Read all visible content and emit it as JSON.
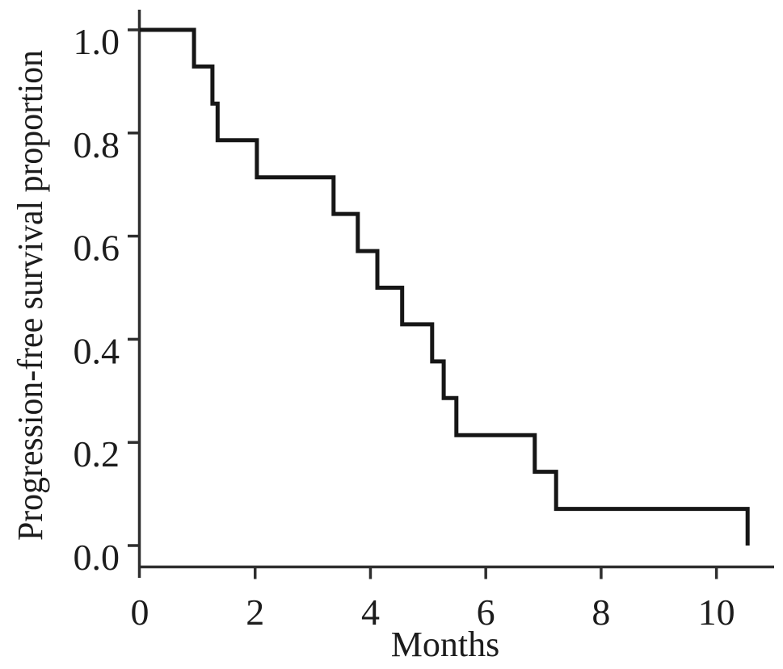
{
  "page": {
    "background_color": "#ffffff",
    "curve_color": "#161616",
    "axis_color": "#2e2e2e",
    "label_color": "#1c1c1c"
  },
  "chart_data": {
    "type": "line",
    "variant": "kaplan-meier-step-curve",
    "title": "",
    "xlabel": "Months",
    "ylabel": "Progression-free survival proportion",
    "xlim": [
      0,
      11
    ],
    "ylim": [
      0,
      1
    ],
    "x_tick_values": [
      0,
      2,
      4,
      6,
      8,
      10
    ],
    "x_tick_labels": [
      "0",
      "2",
      "4",
      "6",
      "8",
      "10"
    ],
    "y_tick_values": [
      1.0,
      0.8,
      0.6,
      0.4,
      0.2,
      0.0
    ],
    "y_tick_labels": [
      "1.0",
      "0.8",
      "0.6",
      "0.4",
      "0.2",
      "0.0"
    ],
    "grid": false,
    "legend": false,
    "series": [
      {
        "name": "Progression-free survival",
        "start": {
          "t": 0,
          "s": 1.0
        },
        "events": [
          {
            "t": 0.94,
            "s": 0.929
          },
          {
            "t": 1.26,
            "s": 0.857
          },
          {
            "t": 1.35,
            "s": 0.786
          },
          {
            "t": 2.03,
            "s": 0.714
          },
          {
            "t": 3.36,
            "s": 0.643
          },
          {
            "t": 3.78,
            "s": 0.571
          },
          {
            "t": 4.12,
            "s": 0.5
          },
          {
            "t": 4.55,
            "s": 0.429
          },
          {
            "t": 5.07,
            "s": 0.357
          },
          {
            "t": 5.27,
            "s": 0.286
          },
          {
            "t": 5.49,
            "s": 0.214
          },
          {
            "t": 6.85,
            "s": 0.143
          },
          {
            "t": 7.22,
            "s": 0.071
          },
          {
            "t": 10.54,
            "s": 0.0
          }
        ]
      }
    ]
  }
}
